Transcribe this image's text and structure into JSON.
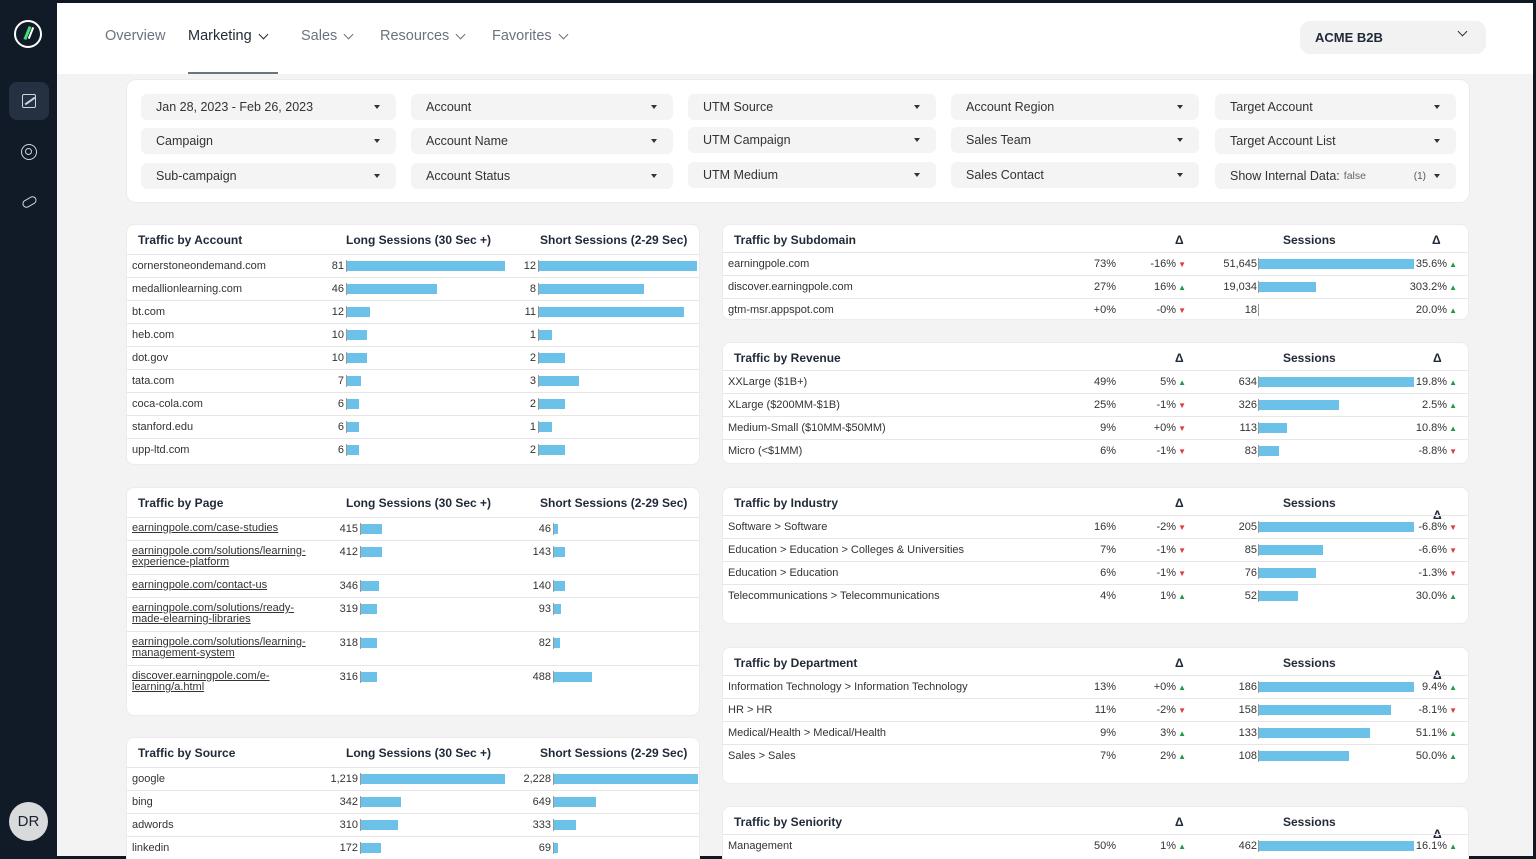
{
  "nav": {
    "items": [
      {
        "label": "Overview",
        "dropdown": false,
        "active": false
      },
      {
        "label": "Marketing",
        "dropdown": true,
        "active": true
      },
      {
        "label": "Sales",
        "dropdown": true,
        "active": false
      },
      {
        "label": "Resources",
        "dropdown": true,
        "active": false
      },
      {
        "label": "Favorites",
        "dropdown": true,
        "active": false
      }
    ],
    "account": "ACME B2B"
  },
  "sidebar": {
    "icons": [
      "logo-icon",
      "chart-icon",
      "target-icon",
      "link-icon"
    ],
    "avatar_initials": "DR"
  },
  "filters": [
    {
      "label": "Jan 28, 2023 - Feb 26, 2023"
    },
    {
      "label": "Account"
    },
    {
      "label": "UTM Source"
    },
    {
      "label": "Account Region"
    },
    {
      "label": "Target Account"
    },
    {
      "label": "Campaign"
    },
    {
      "label": "Account Name"
    },
    {
      "label": "UTM Campaign"
    },
    {
      "label": "Sales Team"
    },
    {
      "label": "Target Account List"
    },
    {
      "label": "Sub-campaign"
    },
    {
      "label": "Account Status"
    },
    {
      "label": "UTM Medium"
    },
    {
      "label": "Sales Contact"
    },
    {
      "label": "Show Internal Data:",
      "sub": "false",
      "count": "(1)"
    }
  ],
  "colors": {
    "bar": "#6cc1e8",
    "up": "#1e9b4a",
    "down": "#e03b3b",
    "sidebar": "#111a27"
  },
  "traffic_by_account": {
    "title": "Traffic by Account",
    "col_long": "Long Sessions (30 Sec +)",
    "col_short": "Short Sessions (2-29 Sec)",
    "rows": [
      {
        "name": "cornerstoneondemand.com",
        "long": "81",
        "short": "12"
      },
      {
        "name": "medallionlearning.com",
        "long": "46",
        "short": "8"
      },
      {
        "name": "bt.com",
        "long": "12",
        "short": "11"
      },
      {
        "name": "heb.com",
        "long": "10",
        "short": "1"
      },
      {
        "name": "dot.gov",
        "long": "10",
        "short": "2"
      },
      {
        "name": "tata.com",
        "long": "7",
        "short": "3"
      },
      {
        "name": "coca-cola.com",
        "long": "6",
        "short": "2"
      },
      {
        "name": "stanford.edu",
        "long": "6",
        "short": "1"
      },
      {
        "name": "upp-ltd.com",
        "long": "6",
        "short": "2"
      }
    ]
  },
  "traffic_by_page": {
    "title": "Traffic by Page",
    "col_long": "Long Sessions (30 Sec +)",
    "col_short": "Short Sessions (2-29 Sec)",
    "rows": [
      {
        "name": "earningpole.com/case-studies",
        "long": "415",
        "short": "46"
      },
      {
        "name": "earningpole.com/solutions/learning-experience-platform",
        "long": "412",
        "short": "143"
      },
      {
        "name": "earningpole.com/contact-us",
        "long": "346",
        "short": "140"
      },
      {
        "name": "earningpole.com/solutions/ready-made-elearning-libraries",
        "long": "319",
        "short": "93"
      },
      {
        "name": "earningpole.com/solutions/learning-management-system",
        "long": "318",
        "short": "82"
      },
      {
        "name": "discover.earningpole.com/e-learning/a.html",
        "long": "316",
        "short": "488"
      }
    ]
  },
  "traffic_by_source": {
    "title": "Traffic by Source",
    "col_long": "Long Sessions (30 Sec +)",
    "col_short": "Short Sessions (2-29 Sec)",
    "rows": [
      {
        "name": "google",
        "long": "1,219",
        "short": "2,228"
      },
      {
        "name": "bing",
        "long": "342",
        "short": "649"
      },
      {
        "name": "adwords",
        "long": "310",
        "short": "333"
      },
      {
        "name": "linkedin",
        "long": "172",
        "short": "69"
      }
    ]
  },
  "traffic_by_subdomain": {
    "title": "Traffic by Subdomain",
    "delta_label": "Δ",
    "sessions_label": "Sessions",
    "rows": [
      {
        "name": "earningpole.com",
        "pct": "73%",
        "d1": "-16%",
        "d1dir": "down",
        "sessions": "51,645",
        "sval": 51645,
        "d2": "35.6%",
        "d2dir": "up"
      },
      {
        "name": "discover.earningpole.com",
        "pct": "27%",
        "d1": "16%",
        "d1dir": "up",
        "sessions": "19,034",
        "sval": 19034,
        "d2": "303.2%",
        "d2dir": "up"
      },
      {
        "name": "gtm-msr.appspot.com",
        "pct": "+0%",
        "d1": "-0%",
        "d1dir": "down",
        "sessions": "18",
        "sval": 18,
        "d2": "20.0%",
        "d2dir": "up"
      }
    ]
  },
  "traffic_by_revenue": {
    "title": "Traffic by Revenue",
    "delta_label": "Δ",
    "sessions_label": "Sessions",
    "rows": [
      {
        "name": "XXLarge ($1B+)",
        "pct": "49%",
        "d1": "5%",
        "d1dir": "up",
        "sessions": "634",
        "sval": 634,
        "d2": "19.8%",
        "d2dir": "up"
      },
      {
        "name": "XLarge ($200MM-$1B)",
        "pct": "25%",
        "d1": "-1%",
        "d1dir": "down",
        "sessions": "326",
        "sval": 326,
        "d2": "2.5%",
        "d2dir": "up"
      },
      {
        "name": "Medium-Small ($10MM-$50MM)",
        "pct": "9%",
        "d1": "+0%",
        "d1dir": "down",
        "sessions": "113",
        "sval": 113,
        "d2": "10.8%",
        "d2dir": "up"
      },
      {
        "name": "Micro (<$1MM)",
        "pct": "6%",
        "d1": "-1%",
        "d1dir": "down",
        "sessions": "83",
        "sval": 83,
        "d2": "-8.8%",
        "d2dir": "down"
      }
    ]
  },
  "traffic_by_industry": {
    "title": "Traffic by Industry",
    "delta_label": "Δ",
    "sessions_label": "Sessions",
    "rows": [
      {
        "name": "Software > Software",
        "pct": "16%",
        "d1": "-2%",
        "d1dir": "down",
        "sessions": "205",
        "sval": 205,
        "d2": "-6.8%",
        "d2dir": "down"
      },
      {
        "name": "Education > Education > Colleges & Universities",
        "pct": "7%",
        "d1": "-1%",
        "d1dir": "down",
        "sessions": "85",
        "sval": 85,
        "d2": "-6.6%",
        "d2dir": "down"
      },
      {
        "name": "Education > Education",
        "pct": "6%",
        "d1": "-1%",
        "d1dir": "down",
        "sessions": "76",
        "sval": 76,
        "d2": "-1.3%",
        "d2dir": "down"
      },
      {
        "name": "Telecommunications > Telecommunications",
        "pct": "4%",
        "d1": "1%",
        "d1dir": "up",
        "sessions": "52",
        "sval": 52,
        "d2": "30.0%",
        "d2dir": "up"
      }
    ]
  },
  "traffic_by_department": {
    "title": "Traffic by Department",
    "delta_label": "Δ",
    "sessions_label": "Sessions",
    "rows": [
      {
        "name": "Information Technology > Information Technology",
        "pct": "13%",
        "d1": "+0%",
        "d1dir": "up",
        "sessions": "186",
        "sval": 186,
        "d2": "9.4%",
        "d2dir": "up"
      },
      {
        "name": "HR > HR",
        "pct": "11%",
        "d1": "-2%",
        "d1dir": "down",
        "sessions": "158",
        "sval": 158,
        "d2": "-8.1%",
        "d2dir": "down"
      },
      {
        "name": "Medical/Health > Medical/Health",
        "pct": "9%",
        "d1": "3%",
        "d1dir": "up",
        "sessions": "133",
        "sval": 133,
        "d2": "51.1%",
        "d2dir": "up"
      },
      {
        "name": "Sales > Sales",
        "pct": "7%",
        "d1": "2%",
        "d1dir": "up",
        "sessions": "108",
        "sval": 108,
        "d2": "50.0%",
        "d2dir": "up"
      }
    ]
  },
  "traffic_by_seniority": {
    "title": "Traffic by Seniority",
    "delta_label": "Δ",
    "sessions_label": "Sessions",
    "rows": [
      {
        "name": "Management",
        "pct": "50%",
        "d1": "1%",
        "d1dir": "up",
        "sessions": "462",
        "sval": 462,
        "d2": "16.1%",
        "d2dir": "up"
      }
    ]
  }
}
